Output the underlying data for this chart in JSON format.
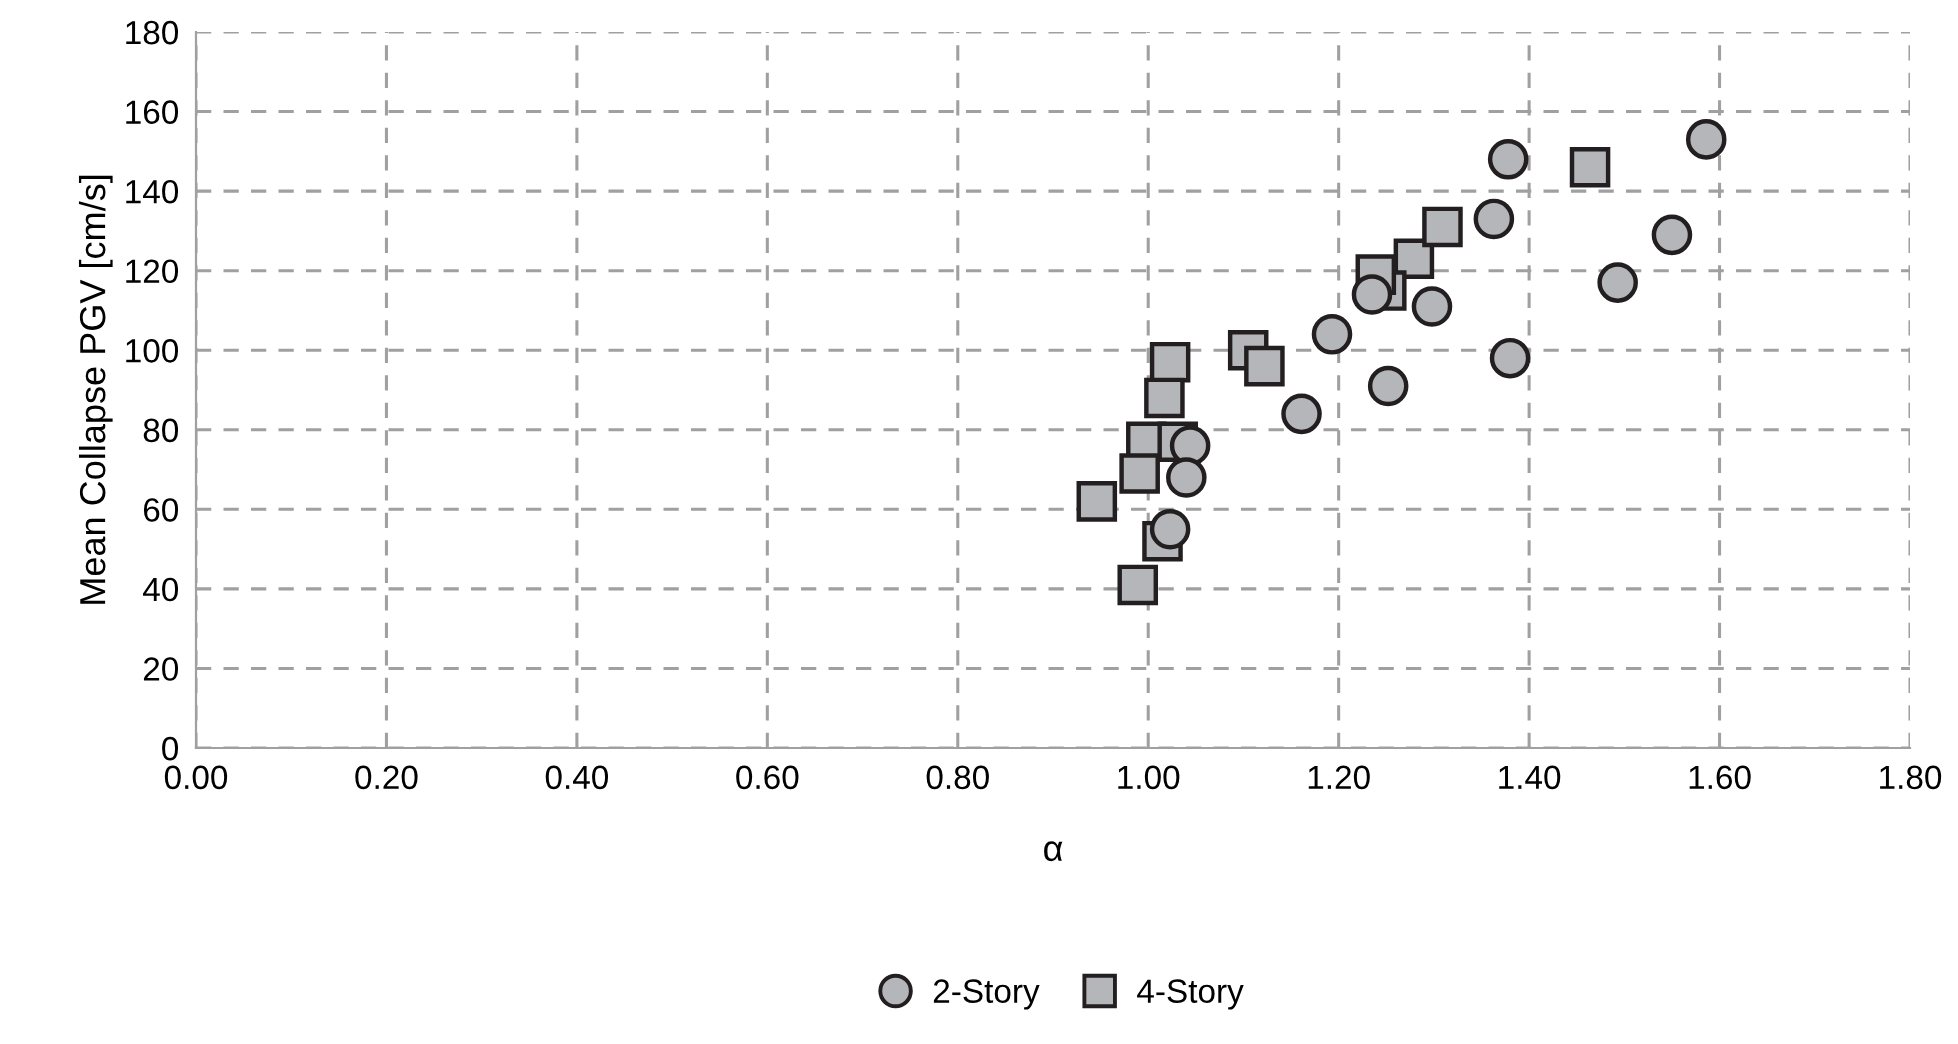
{
  "chart_data": {
    "type": "scatter",
    "xlabel": "α",
    "ylabel": "Mean Collapse PGV [cm/s]",
    "xlim": [
      0,
      1.8
    ],
    "xticks": [
      {
        "value": 0,
        "label": "0.00"
      },
      {
        "value": 0.2,
        "label": "0.20"
      },
      {
        "value": 0.4,
        "label": "0.40"
      },
      {
        "value": 0.6,
        "label": "0.60"
      },
      {
        "value": 0.8,
        "label": "0.80"
      },
      {
        "value": 1.0,
        "label": "1.00"
      },
      {
        "value": 1.2,
        "label": "1.20"
      },
      {
        "value": 1.4,
        "label": "1.40"
      },
      {
        "value": 1.6,
        "label": "1.60"
      },
      {
        "value": 1.8,
        "label": "1.80"
      }
    ],
    "ylim": [
      0,
      180
    ],
    "yticks": [
      0,
      20,
      40,
      60,
      80,
      100,
      120,
      140,
      160,
      180
    ],
    "grid": true,
    "legend": "bottom",
    "series": [
      {
        "name": "2-Story",
        "color": "#b4b6b9",
        "marker": "circle",
        "x": [
          1.044,
          1.04,
          1.023,
          1.161,
          1.193,
          1.252,
          1.235,
          1.298,
          1.363,
          1.378,
          1.38,
          1.493,
          1.55,
          1.586
        ],
        "values": [
          76,
          68,
          55,
          84,
          104,
          91,
          114,
          111,
          133,
          148,
          98,
          117,
          129,
          153
        ]
      },
      {
        "name": "4-Story",
        "color": "#b4b6b9",
        "marker": "square",
        "x": [
          1.023,
          1.017,
          0.998,
          1.031,
          0.991,
          0.946,
          1.015,
          0.989,
          1.105,
          1.122,
          1.279,
          1.309,
          1.25,
          1.239,
          1.464
        ],
        "values": [
          97,
          88,
          77,
          77,
          69,
          62,
          52,
          41,
          100,
          96,
          123,
          131,
          115,
          119,
          146
        ]
      }
    ]
  }
}
